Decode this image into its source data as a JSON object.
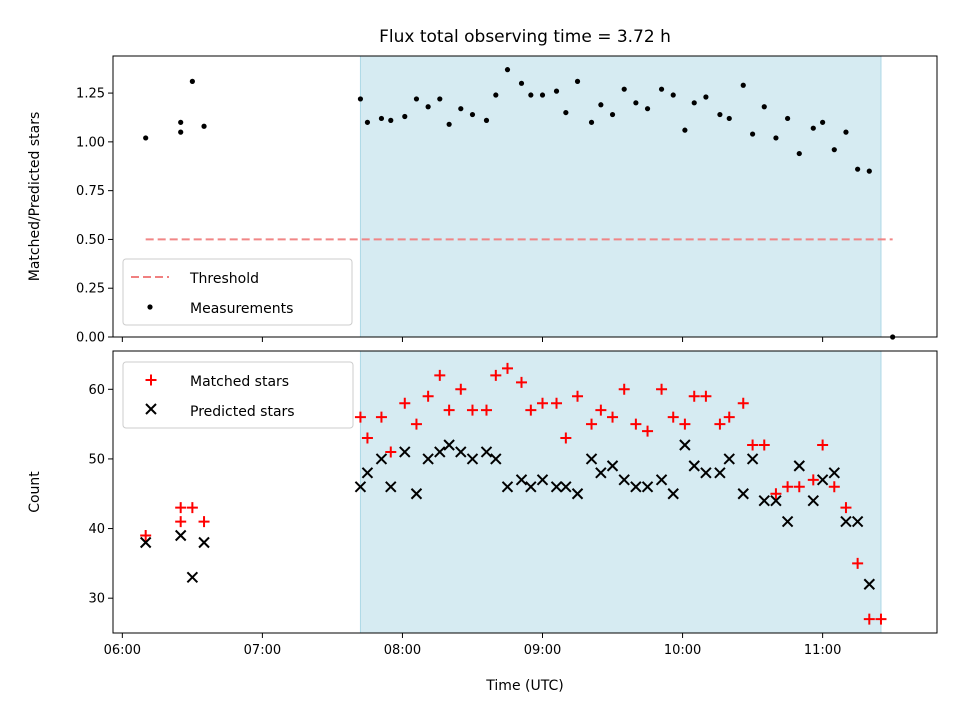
{
  "chart_data": [
    {
      "type": "scatter",
      "title": "Flux total observing time = 3.72 h",
      "xlabel": "",
      "ylabel": "Matched/Predicted stars",
      "xlim": [
        "05:56",
        "11:49"
      ],
      "ylim": [
        0,
        1.44
      ],
      "yticks": [
        "0.00",
        "0.25",
        "0.50",
        "0.75",
        "1.00",
        "1.25"
      ],
      "highlight_span": [
        "07:42",
        "11:25"
      ],
      "legend_position": "lower-left",
      "threshold": {
        "name": "Threshold",
        "value": 0.5,
        "x": [
          "06:10",
          "11:30"
        ],
        "color": "#f08080"
      },
      "series": [
        {
          "name": "Measurements",
          "color": "#000000",
          "x": [
            "06:10",
            "06:25",
            "06:25",
            "06:30",
            "06:35",
            "07:42",
            "07:45",
            "07:51",
            "07:55",
            "08:01",
            "08:06",
            "08:11",
            "08:16",
            "08:20",
            "08:25",
            "08:30",
            "08:36",
            "08:40",
            "08:45",
            "08:51",
            "08:55",
            "09:00",
            "09:06",
            "09:10",
            "09:15",
            "09:21",
            "09:25",
            "09:30",
            "09:35",
            "09:40",
            "09:45",
            "09:51",
            "09:56",
            "10:01",
            "10:05",
            "10:10",
            "10:16",
            "10:20",
            "10:26",
            "10:30",
            "10:35",
            "10:40",
            "10:45",
            "10:50",
            "10:56",
            "11:00",
            "11:05",
            "11:10",
            "11:15",
            "11:20",
            "11:30"
          ],
          "y": [
            1.02,
            1.1,
            1.05,
            1.31,
            1.08,
            1.22,
            1.1,
            1.12,
            1.11,
            1.13,
            1.22,
            1.18,
            1.22,
            1.09,
            1.17,
            1.14,
            1.11,
            1.24,
            1.37,
            1.3,
            1.24,
            1.24,
            1.26,
            1.15,
            1.31,
            1.1,
            1.19,
            1.14,
            1.27,
            1.2,
            1.17,
            1.27,
            1.24,
            1.06,
            1.2,
            1.23,
            1.14,
            1.12,
            1.29,
            1.04,
            1.18,
            1.02,
            1.12,
            0.94,
            1.07,
            1.1,
            0.96,
            1.05,
            0.86,
            0.85,
            0.0
          ]
        }
      ]
    },
    {
      "type": "scatter",
      "title": "",
      "xlabel": "Time (UTC)",
      "ylabel": "Count",
      "xlim": [
        "05:56",
        "11:49"
      ],
      "ylim": [
        25,
        65.5
      ],
      "yticks": [
        "30",
        "40",
        "50",
        "60"
      ],
      "xticks": [
        "06:00",
        "07:00",
        "08:00",
        "09:00",
        "10:00",
        "11:00"
      ],
      "highlight_span": [
        "07:42",
        "11:25"
      ],
      "legend_position": "upper-left",
      "series": [
        {
          "name": "Matched stars",
          "marker": "plus",
          "color": "#ff0000",
          "x": [
            "06:10",
            "06:25",
            "06:25",
            "06:30",
            "06:35",
            "07:42",
            "07:45",
            "07:51",
            "07:55",
            "08:01",
            "08:06",
            "08:11",
            "08:16",
            "08:20",
            "08:25",
            "08:30",
            "08:36",
            "08:40",
            "08:45",
            "08:51",
            "08:55",
            "09:00",
            "09:06",
            "09:10",
            "09:15",
            "09:21",
            "09:25",
            "09:30",
            "09:35",
            "09:40",
            "09:45",
            "09:51",
            "09:56",
            "10:01",
            "10:05",
            "10:10",
            "10:16",
            "10:20",
            "10:26",
            "10:30",
            "10:35",
            "10:40",
            "10:45",
            "10:50",
            "10:56",
            "11:00",
            "11:05",
            "11:10",
            "11:15",
            "11:20",
            "11:25"
          ],
          "y": [
            39,
            41,
            43,
            43,
            41,
            56,
            53,
            56,
            51,
            58,
            55,
            59,
            62,
            57,
            60,
            57,
            57,
            62,
            63,
            61,
            57,
            58,
            58,
            53,
            59,
            55,
            57,
            56,
            60,
            55,
            54,
            60,
            56,
            55,
            59,
            59,
            55,
            56,
            58,
            52,
            52,
            45,
            46,
            46,
            47,
            52,
            46,
            43,
            35,
            27,
            27
          ]
        },
        {
          "name": "Predicted stars",
          "marker": "x",
          "color": "#000000",
          "x": [
            "06:10",
            "06:25",
            "06:30",
            "06:35",
            "07:42",
            "07:45",
            "07:51",
            "07:55",
            "08:01",
            "08:06",
            "08:11",
            "08:16",
            "08:20",
            "08:25",
            "08:30",
            "08:36",
            "08:40",
            "08:45",
            "08:51",
            "08:55",
            "09:00",
            "09:06",
            "09:10",
            "09:15",
            "09:21",
            "09:25",
            "09:30",
            "09:35",
            "09:40",
            "09:45",
            "09:51",
            "09:56",
            "10:01",
            "10:05",
            "10:10",
            "10:16",
            "10:20",
            "10:26",
            "10:30",
            "10:35",
            "10:40",
            "10:45",
            "10:50",
            "10:56",
            "11:00",
            "11:05",
            "11:10",
            "11:15",
            "11:20"
          ],
          "y": [
            38,
            39,
            33,
            38,
            46,
            48,
            50,
            46,
            51,
            45,
            50,
            51,
            52,
            51,
            50,
            51,
            50,
            46,
            47,
            46,
            47,
            46,
            46,
            45,
            50,
            48,
            49,
            47,
            46,
            46,
            47,
            45,
            52,
            49,
            48,
            48,
            50,
            45,
            50,
            44,
            44,
            41,
            49,
            44,
            47,
            48,
            41,
            41,
            32
          ]
        }
      ]
    }
  ]
}
